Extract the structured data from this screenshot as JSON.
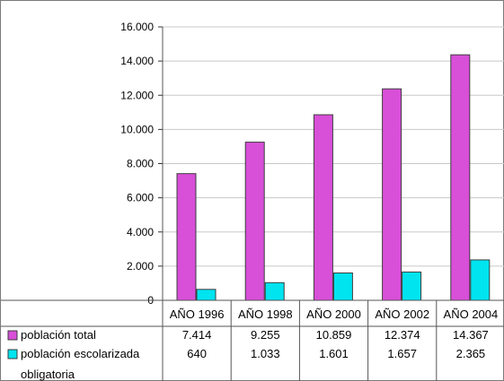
{
  "chart_data": {
    "type": "bar",
    "categories": [
      "AÑO 1996",
      "AÑO 1998",
      "AÑO 2000",
      "AÑO 2002",
      "AÑO 2004"
    ],
    "series": [
      {
        "name": "población total",
        "values": [
          7414,
          9255,
          10859,
          12374,
          14367
        ],
        "display_values": [
          "7.414",
          "9.255",
          "10.859",
          "12.374",
          "14.367"
        ],
        "color": "#d84fd8"
      },
      {
        "name": "población escolarizada obligatoria",
        "name_lines": [
          "población escolarizada",
          "obligatoria"
        ],
        "values": [
          640,
          1033,
          1601,
          1657,
          2365
        ],
        "display_values": [
          "640",
          "1.033",
          "1.601",
          "1.657",
          "2.365"
        ],
        "color": "#00e4f0"
      }
    ],
    "y_ticks": [
      0,
      2000,
      4000,
      6000,
      8000,
      10000,
      12000,
      14000,
      16000
    ],
    "y_tick_labels": [
      "0",
      "2.000",
      "4.000",
      "6.000",
      "8.000",
      "10.000",
      "12.000",
      "14.000",
      "16.000"
    ],
    "ylim": [
      0,
      16000
    ],
    "title": "",
    "xlabel": "",
    "ylabel": "",
    "grid": true,
    "legend_placement": "data-table",
    "has_data_table": true
  }
}
